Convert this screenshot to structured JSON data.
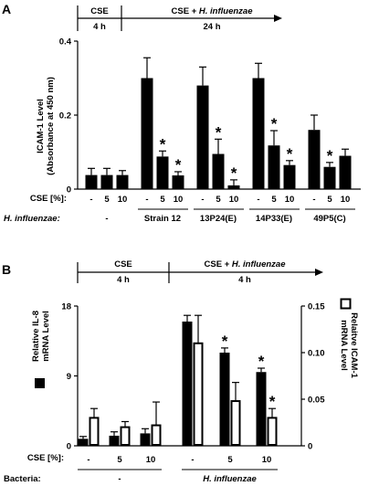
{
  "chart_data": [
    {
      "panel": "A",
      "type": "bar",
      "timeline": {
        "phase1": "CSE",
        "phase1_time": "4 h",
        "phase2": "CSE + H. influenzae",
        "phase2_time": "24 h"
      },
      "ylabel": "ICAM-1 Level",
      "ylabel2": "(Absorbance at 450 nm)",
      "ylim": [
        0,
        0.4
      ],
      "yticks": [
        "0",
        "0.2",
        "0.4"
      ],
      "row1_label": "CSE [%]:",
      "row2_label": "H. influenzae:",
      "groups": [
        {
          "name": "-",
          "cse": [
            "-",
            "5",
            "10"
          ],
          "values": [
            0.038,
            0.038,
            0.038
          ],
          "errors": [
            0.018,
            0.018,
            0.012
          ],
          "stars": [
            false,
            false,
            false
          ]
        },
        {
          "name": "Strain 12",
          "cse": [
            "-",
            "5",
            "10"
          ],
          "values": [
            0.3,
            0.088,
            0.037
          ],
          "errors": [
            0.055,
            0.015,
            0.01
          ],
          "stars": [
            false,
            true,
            true
          ]
        },
        {
          "name": "13P24(E)",
          "cse": [
            "-",
            "5",
            "10"
          ],
          "values": [
            0.28,
            0.095,
            0.01
          ],
          "errors": [
            0.05,
            0.04,
            0.015
          ],
          "stars": [
            false,
            true,
            true
          ]
        },
        {
          "name": "14P33(E)",
          "cse": [
            "-",
            "5",
            "10"
          ],
          "values": [
            0.3,
            0.118,
            0.065
          ],
          "errors": [
            0.04,
            0.04,
            0.012
          ],
          "stars": [
            false,
            true,
            true
          ]
        },
        {
          "name": "49P5(C)",
          "cse": [
            "-",
            "5",
            "10"
          ],
          "values": [
            0.16,
            0.06,
            0.09
          ],
          "errors": [
            0.04,
            0.012,
            0.018
          ],
          "stars": [
            false,
            true,
            false
          ]
        }
      ]
    },
    {
      "panel": "B",
      "type": "bar",
      "timeline": {
        "phase1": "CSE",
        "phase1_time": "4 h",
        "phase2": "CSE + H. influenzae",
        "phase2_time": "4 h"
      },
      "ylabel_left": "Relative IL-8",
      "ylabel_left2": "mRNA Level",
      "ylabel_right": "Relaitve ICAM-1",
      "ylabel_right2": "mRNA Level",
      "ylim_left": [
        0,
        18
      ],
      "yticks_left": [
        "0",
        "9",
        "18"
      ],
      "ylim_right": [
        0,
        0.15
      ],
      "yticks_right": [
        "0",
        "0.05",
        "0.10",
        "0.15"
      ],
      "row1_label": "CSE [%]:",
      "row2_label": "Bacteria:",
      "groups": [
        {
          "name": "-",
          "cse": [
            "-",
            "5",
            "10"
          ],
          "il8": [
            0.9,
            1.3,
            1.6
          ],
          "il8_err": [
            0.3,
            0.5,
            0.6
          ],
          "icam": [
            0.03,
            0.02,
            0.022
          ],
          "icam_err": [
            0.01,
            0.006,
            0.025
          ],
          "il8_stars": [
            false,
            false,
            false
          ],
          "icam_stars": [
            false,
            false,
            false
          ]
        },
        {
          "name": "H. influenzae",
          "cse": [
            "-",
            "5",
            "10"
          ],
          "il8": [
            16.0,
            12.0,
            9.5
          ],
          "il8_err": [
            0.8,
            0.6,
            0.5
          ],
          "icam": [
            0.11,
            0.048,
            0.03
          ],
          "icam_err": [
            0.03,
            0.02,
            0.01
          ],
          "il8_stars": [
            false,
            true,
            true
          ],
          "icam_stars": [
            false,
            false,
            true
          ]
        }
      ]
    }
  ]
}
